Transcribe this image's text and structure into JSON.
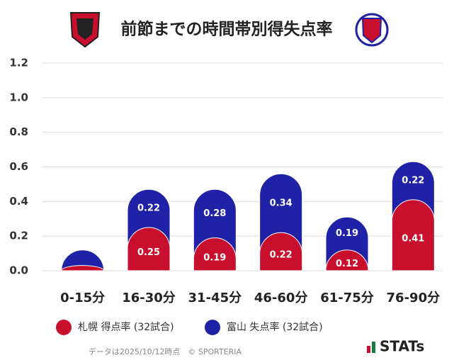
{
  "chart_data": {
    "type": "bar",
    "stacked": true,
    "title": "前節までの時間帯別得失点率",
    "categories": [
      "0-15分",
      "16-30分",
      "31-45分",
      "46-60分",
      "61-75分",
      "76-90分"
    ],
    "series": [
      {
        "name": "札幌 得点率 (32試合)",
        "color": "#c8102e",
        "values": [
          0.03,
          0.25,
          0.19,
          0.22,
          0.12,
          0.41
        ]
      },
      {
        "name": "富山 失点率 (32試合)",
        "color": "#1f22a6",
        "values": [
          0.09,
          0.22,
          0.28,
          0.34,
          0.19,
          0.22
        ]
      }
    ],
    "ylim": [
      0,
      1.2
    ],
    "yticks": [
      {
        "value": 0,
        "label": "0.0"
      },
      0.2,
      0.4,
      0.6,
      0.8,
      {
        "value": 1,
        "label": "1.0"
      },
      1.2
    ],
    "grid": true,
    "footer": "データは2025/10/12時点　© SPORTERIA",
    "brand": "STATs"
  }
}
